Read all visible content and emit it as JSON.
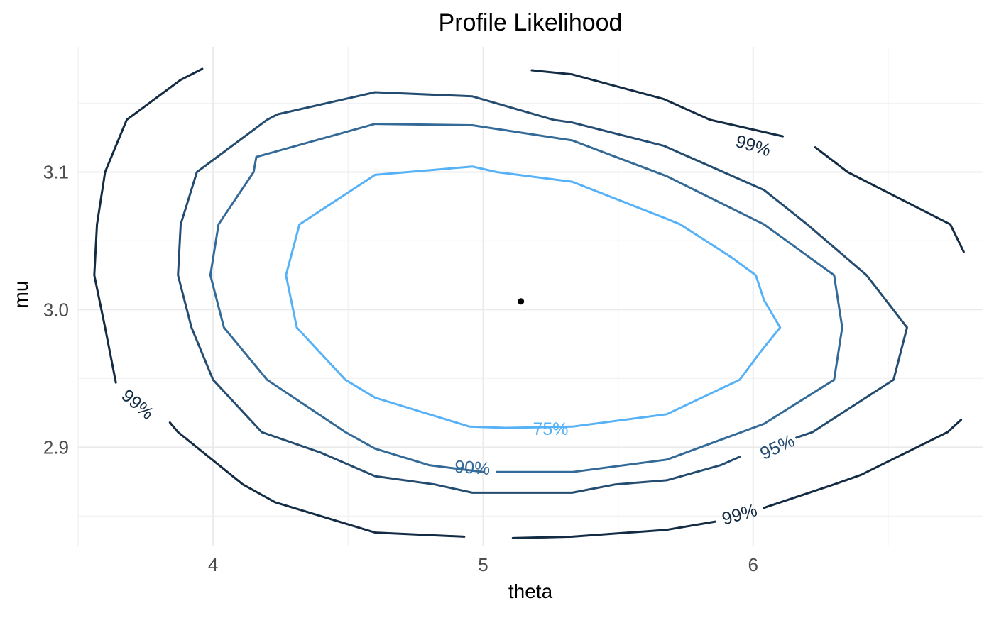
{
  "chart_data": {
    "type": "line",
    "title": "Profile Likelihood",
    "xlabel": "theta",
    "ylabel": "mu",
    "xlim": [
      3.5,
      6.85
    ],
    "ylim": [
      2.828,
      3.191
    ],
    "x_ticks": [
      4,
      5,
      6
    ],
    "x_tick_labels": [
      "4",
      "5",
      "6"
    ],
    "y_ticks": [
      2.9,
      3.0,
      3.1
    ],
    "y_tick_labels": [
      "2.9",
      "3.0",
      "3.1"
    ],
    "x_minor_ticks": [
      3.5,
      4.5,
      5.5,
      6.5
    ],
    "y_minor_ticks": [
      2.85,
      2.95,
      3.05,
      3.15
    ],
    "grid": true,
    "legend": "none",
    "colors": {
      "level_75": "#56b1f7",
      "level_90": "#336a98",
      "level_95": "#244c70",
      "level_99": "#132b43",
      "estimate": "#000000"
    },
    "estimate": {
      "x": 5.14,
      "y": 3.006
    },
    "series": [
      {
        "level": "75",
        "color": "#56b1f7",
        "paths": [
          [
            [
              5.05,
              2.914
            ],
            [
              5.33,
              2.915
            ],
            [
              5.68,
              2.924
            ],
            [
              5.95,
              2.949
            ],
            [
              6.03,
              2.97
            ],
            [
              6.1,
              2.987
            ],
            [
              6.04,
              3.007
            ],
            [
              6.01,
              3.025
            ],
            [
              5.92,
              3.038
            ],
            [
              5.73,
              3.062
            ],
            [
              5.68,
              3.066
            ],
            [
              5.33,
              3.093
            ],
            [
              5.05,
              3.1
            ],
            [
              4.96,
              3.104
            ],
            [
              4.6,
              3.098
            ],
            [
              4.32,
              3.062
            ],
            [
              4.27,
              3.025
            ],
            [
              4.31,
              2.987
            ],
            [
              4.49,
              2.949
            ],
            [
              4.6,
              2.936
            ],
            [
              4.95,
              2.915
            ],
            [
              5.1,
              2.914
            ]
          ]
        ]
      },
      {
        "level": "90",
        "color": "#336a98",
        "paths": [
          [
            [
              5.05,
              2.882
            ],
            [
              5.33,
              2.882
            ],
            [
              5.68,
              2.891
            ],
            [
              6.04,
              2.917
            ],
            [
              6.3,
              2.949
            ],
            [
              6.33,
              2.987
            ],
            [
              6.3,
              3.025
            ],
            [
              6.04,
              3.062
            ],
            [
              5.68,
              3.097
            ],
            [
              5.33,
              3.123
            ],
            [
              4.96,
              3.134
            ],
            [
              4.6,
              3.135
            ],
            [
              4.16,
              3.111
            ],
            [
              4.15,
              3.1
            ],
            [
              4.02,
              3.062
            ],
            [
              3.99,
              3.025
            ],
            [
              4.04,
              2.987
            ],
            [
              4.2,
              2.949
            ],
            [
              4.49,
              2.911
            ],
            [
              4.6,
              2.899
            ],
            [
              4.8,
              2.887
            ],
            [
              5.0,
              2.882
            ]
          ]
        ]
      },
      {
        "level": "95",
        "color": "#244c70",
        "paths": [
          [
            [
              5.95,
              2.893
            ],
            [
              5.88,
              2.887
            ],
            [
              5.68,
              2.876
            ],
            [
              5.49,
              2.873
            ],
            [
              5.33,
              2.867
            ],
            [
              4.96,
              2.867
            ],
            [
              4.82,
              2.873
            ],
            [
              4.6,
              2.879
            ],
            [
              4.4,
              2.896
            ],
            [
              4.18,
              2.911
            ],
            [
              4.0,
              2.949
            ],
            [
              3.92,
              2.987
            ],
            [
              3.87,
              3.025
            ],
            [
              3.88,
              3.062
            ],
            [
              3.94,
              3.1
            ],
            [
              4.2,
              3.138
            ],
            [
              4.24,
              3.142
            ],
            [
              4.6,
              3.158
            ],
            [
              4.96,
              3.155
            ],
            [
              5.26,
              3.138
            ],
            [
              5.33,
              3.136
            ],
            [
              5.67,
              3.119
            ],
            [
              6.04,
              3.087
            ],
            [
              6.2,
              3.062
            ],
            [
              6.42,
              3.025
            ],
            [
              6.57,
              2.987
            ],
            [
              6.52,
              2.949
            ],
            [
              6.22,
              2.911
            ],
            [
              6.16,
              2.907
            ]
          ]
        ]
      },
      {
        "level": "99",
        "color": "#132b43",
        "paths": [
          [
            [
              6.11,
              3.126
            ],
            [
              5.84,
              3.138
            ],
            [
              5.67,
              3.153
            ],
            [
              5.33,
              3.171
            ],
            [
              5.18,
              3.174
            ]
          ],
          [
            [
              6.23,
              3.118
            ],
            [
              6.35,
              3.1
            ],
            [
              6.73,
              3.062
            ],
            [
              6.78,
              3.042
            ]
          ],
          [
            [
              4.93,
              2.835
            ],
            [
              4.6,
              2.838
            ],
            [
              4.23,
              2.86
            ],
            [
              4.11,
              2.873
            ],
            [
              3.87,
              2.911
            ],
            [
              3.84,
              2.918
            ]
          ],
          [
            [
              3.64,
              2.947
            ],
            [
              3.6,
              2.987
            ],
            [
              3.56,
              3.025
            ],
            [
              3.57,
              3.062
            ],
            [
              3.6,
              3.1
            ],
            [
              3.68,
              3.138
            ],
            [
              3.88,
              3.167
            ],
            [
              3.96,
              3.175
            ]
          ],
          [
            [
              5.11,
              2.834
            ],
            [
              5.33,
              2.835
            ],
            [
              5.68,
              2.84
            ],
            [
              5.86,
              2.846
            ]
          ],
          [
            [
              6.04,
              2.856
            ],
            [
              6.3,
              2.873
            ],
            [
              6.4,
              2.88
            ],
            [
              6.72,
              2.911
            ],
            [
              6.77,
              2.92
            ]
          ]
        ]
      }
    ],
    "annotations": [
      {
        "text": "75%",
        "x": 5.25,
        "y": 2.913,
        "angle": 0,
        "color": "#56b1f7"
      },
      {
        "text": "90%",
        "x": 4.96,
        "y": 2.885,
        "angle": 4,
        "color": "#336a98"
      },
      {
        "text": "95%",
        "x": 6.09,
        "y": 2.9,
        "angle": -25,
        "color": "#244c70"
      },
      {
        "text": "99%",
        "x": 6.0,
        "y": 3.119,
        "angle": 17,
        "color": "#132b43"
      },
      {
        "text": "99%",
        "x": 3.72,
        "y": 2.931,
        "angle": 40,
        "color": "#132b43"
      },
      {
        "text": "99%",
        "x": 5.95,
        "y": 2.851,
        "angle": -16,
        "color": "#132b43"
      }
    ]
  }
}
